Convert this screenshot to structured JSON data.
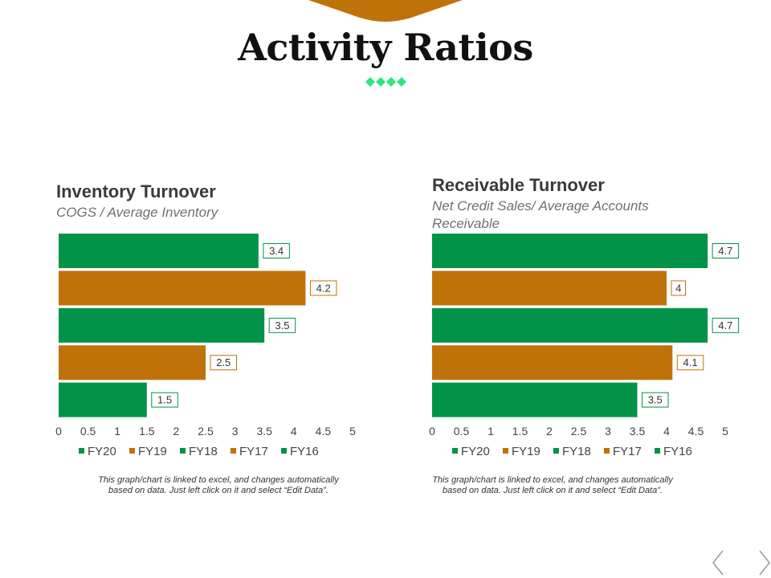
{
  "page": {
    "title": "Activity Ratios"
  },
  "colors": {
    "green": "#029348",
    "orange": "#C0720A",
    "diamond": "#2EE67E"
  },
  "charts": [
    {
      "title": "Inventory Turnover",
      "subtitle": "COGS / Average Inventory",
      "note_line1": "This graph/chart is linked to excel, and changes automatically",
      "note_line2": "based on data. Just left click on it and select “Edit Data”."
    },
    {
      "title": "Receivable Turnover",
      "subtitle_line1": "Net Credit Sales/ Average Accounts",
      "subtitle_line2": "Receivable",
      "note_line1": "This graph/chart is linked to excel, and changes automatically",
      "note_line2": "based on data. Just left click on it and select “Edit Data”."
    }
  ],
  "chart_data": [
    {
      "type": "bar",
      "orientation": "horizontal",
      "title": "Inventory Turnover",
      "subtitle": "COGS / Average Inventory",
      "categories": [
        "FY20",
        "FY19",
        "FY18",
        "FY17",
        "FY16"
      ],
      "values": [
        3.4,
        4.2,
        3.5,
        2.5,
        1.5
      ],
      "bar_colors": [
        "#029348",
        "#C0720A",
        "#029348",
        "#C0720A",
        "#029348"
      ],
      "xlim": [
        0,
        5
      ],
      "xticks": [
        "0",
        "0.5",
        "1",
        "1.5",
        "2",
        "2.5",
        "3",
        "3.5",
        "4",
        "4.5",
        "5"
      ],
      "legend": "bottom",
      "grid": false,
      "data_labels": [
        "3.4",
        "4.2",
        "3.5",
        "2.5",
        "1.5"
      ]
    },
    {
      "type": "bar",
      "orientation": "horizontal",
      "title": "Receivable Turnover",
      "subtitle": "Net Credit Sales/ Average Accounts Receivable",
      "categories": [
        "FY20",
        "FY19",
        "FY18",
        "FY17",
        "FY16"
      ],
      "values": [
        4.7,
        4,
        4.7,
        4.1,
        3.5
      ],
      "bar_colors": [
        "#029348",
        "#C0720A",
        "#029348",
        "#C0720A",
        "#029348"
      ],
      "xlim": [
        0,
        5
      ],
      "xticks": [
        "0",
        "0.5",
        "1",
        "1.5",
        "2",
        "2.5",
        "3",
        "3.5",
        "4",
        "4.5",
        "5"
      ],
      "legend": "bottom",
      "grid": false,
      "data_labels": [
        "4.7",
        "4",
        "4.7",
        "4.1",
        "3.5"
      ]
    }
  ]
}
